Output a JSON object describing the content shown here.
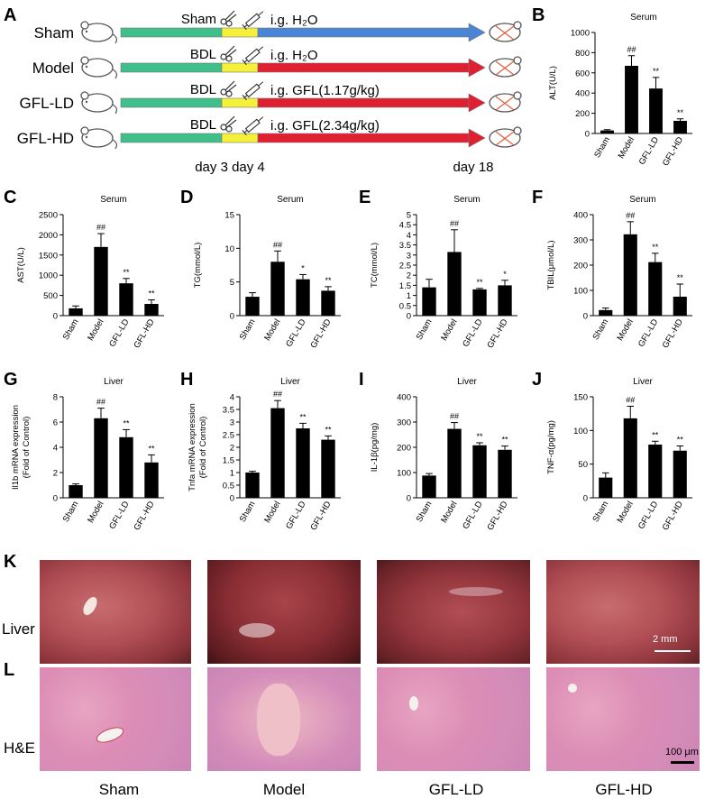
{
  "panel_labels": {
    "A": "A",
    "B": "B",
    "C": "C",
    "D": "D",
    "E": "E",
    "F": "F",
    "G": "G",
    "H": "H",
    "I": "I",
    "J": "J",
    "K": "K",
    "L": "L"
  },
  "schematic": {
    "groups": [
      "Sham",
      "Model",
      "GFL-LD",
      "GFL-HD"
    ],
    "procedures": [
      "Sham",
      "BDL",
      "BDL",
      "BDL"
    ],
    "treatments": [
      "i.g. H₂O",
      "i.g. H₂O",
      "i.g. GFL(1.17g/kg)",
      "i.g. GFL(2.34g/kg)"
    ],
    "arrow_colors": [
      "#4a86d8",
      "#e02030",
      "#e02030",
      "#e02030"
    ],
    "phase_colors": {
      "pre": "#3fbf8a",
      "surgery": "#f5f03a"
    },
    "timeline": {
      "day34": "day 3 day 4",
      "day18": "day 18"
    }
  },
  "chart_data": [
    {
      "id": "B",
      "type": "bar",
      "title": "Serum",
      "ylabel": "ALT(U/L)",
      "categories": [
        "Sham",
        "Model",
        "GFL-LD",
        "GFL-HD"
      ],
      "values": [
        30,
        670,
        445,
        125
      ],
      "errors": [
        8,
        100,
        110,
        20
      ],
      "ylim": [
        0,
        1000
      ],
      "ticks": [
        0,
        200,
        400,
        600,
        800,
        1000
      ],
      "sig": [
        "",
        "##",
        "**",
        "**"
      ]
    },
    {
      "id": "C",
      "type": "bar",
      "title": "Serum",
      "ylabel": "AST(U/L)",
      "categories": [
        "Sham",
        "Model",
        "GFL-LD",
        "GFL-HD"
      ],
      "values": [
        180,
        1700,
        800,
        290
      ],
      "errors": [
        60,
        330,
        120,
        100
      ],
      "ylim": [
        0,
        2500
      ],
      "ticks": [
        0,
        500,
        1000,
        1500,
        2000,
        2500
      ],
      "sig": [
        "",
        "##",
        "**",
        "**"
      ]
    },
    {
      "id": "D",
      "type": "bar",
      "title": "Serum",
      "ylabel": "TG(mmol/L)",
      "categories": [
        "Sham",
        "Model",
        "GFL-LD",
        "GFL-HD"
      ],
      "values": [
        2.8,
        8.0,
        5.4,
        3.7
      ],
      "errors": [
        0.6,
        1.6,
        0.7,
        0.6
      ],
      "ylim": [
        0,
        15
      ],
      "ticks": [
        0,
        5,
        10,
        15
      ],
      "sig": [
        "",
        "##",
        "*",
        "**"
      ]
    },
    {
      "id": "E",
      "type": "bar",
      "title": "Serum",
      "ylabel": "TC(mmol/L)",
      "categories": [
        "Sham",
        "Model",
        "GFL-LD",
        "GFL-HD"
      ],
      "values": [
        1.4,
        3.15,
        1.3,
        1.5
      ],
      "errors": [
        0.4,
        1.1,
        0.05,
        0.25
      ],
      "ylim": [
        0,
        5
      ],
      "ticks": [
        0,
        0.5,
        1,
        1.5,
        2,
        2.5,
        3,
        3.5,
        4,
        4.5,
        5
      ],
      "sig": [
        "",
        "##",
        "**",
        "*"
      ]
    },
    {
      "id": "F",
      "type": "bar",
      "title": "Serum",
      "ylabel": "TBIL(μmol/L)",
      "categories": [
        "Sham",
        "Model",
        "GFL-LD",
        "GFL-HD"
      ],
      "values": [
        22,
        322,
        212,
        75
      ],
      "errors": [
        8,
        50,
        35,
        50
      ],
      "ylim": [
        0,
        400
      ],
      "ticks": [
        0,
        100,
        200,
        300,
        400
      ],
      "sig": [
        "",
        "##",
        "**",
        "**"
      ]
    },
    {
      "id": "G",
      "type": "bar",
      "title": "Liver",
      "ylabel": "Il1b mRNA expression",
      "ylabel2": "(Fold of Control)",
      "categories": [
        "Sham",
        "Model",
        "GFL-LD",
        "GFL-HD"
      ],
      "values": [
        1.0,
        6.3,
        4.8,
        2.8
      ],
      "errors": [
        0.1,
        0.8,
        0.6,
        0.6
      ],
      "ylim": [
        0,
        8
      ],
      "ticks": [
        0,
        2,
        4,
        6,
        8
      ],
      "sig": [
        "",
        "##",
        "**",
        "**"
      ]
    },
    {
      "id": "H",
      "type": "bar",
      "title": "Liver",
      "ylabel": "Tnfa mRNA expression",
      "ylabel2": "(Fold of Control)",
      "categories": [
        "Sham",
        "Model",
        "GFL-LD",
        "GFL-HD"
      ],
      "values": [
        1.0,
        3.55,
        2.75,
        2.3
      ],
      "errors": [
        0.05,
        0.3,
        0.2,
        0.15
      ],
      "ylim": [
        0,
        4
      ],
      "ticks": [
        0,
        0.5,
        1,
        1.5,
        2,
        2.5,
        3,
        3.5,
        4
      ],
      "sig": [
        "",
        "##",
        "**",
        "**"
      ]
    },
    {
      "id": "I",
      "type": "bar",
      "title": "Liver",
      "ylabel": "IL-1β(pg/mg)",
      "categories": [
        "Sham",
        "Model",
        "GFL-LD",
        "GFL-HD"
      ],
      "values": [
        88,
        273,
        208,
        190
      ],
      "errors": [
        8,
        25,
        10,
        15
      ],
      "ylim": [
        0,
        400
      ],
      "ticks": [
        0,
        100,
        200,
        300,
        400
      ],
      "sig": [
        "",
        "##",
        "**",
        "**"
      ]
    },
    {
      "id": "J",
      "type": "bar",
      "title": "Liver",
      "ylabel": "TNF-α(pg/mg)",
      "categories": [
        "Sham",
        "Model",
        "GFL-LD",
        "GFL-HD"
      ],
      "values": [
        30,
        118,
        79,
        70
      ],
      "errors": [
        7,
        18,
        5,
        7
      ],
      "ylim": [
        0,
        150
      ],
      "ticks": [
        0,
        50,
        100,
        150
      ],
      "sig": [
        "",
        "##",
        "**",
        "**"
      ]
    }
  ],
  "images": {
    "row_labels": [
      "Liver",
      "H&E"
    ],
    "group_labels": [
      "Sham",
      "Model",
      "GFL-LD",
      "GFL-HD"
    ],
    "scale_liver": "2 mm",
    "scale_he": "100 μm"
  }
}
